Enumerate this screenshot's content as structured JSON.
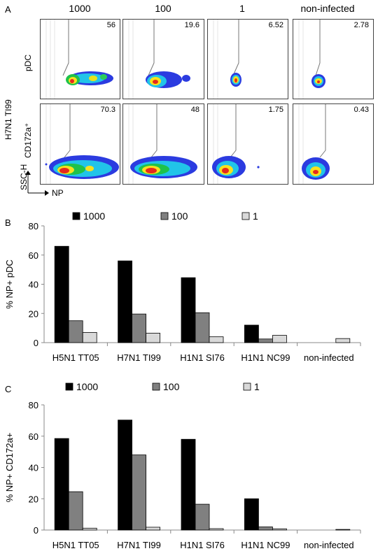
{
  "panel_a": {
    "letter": "A",
    "columns": [
      "1000",
      "100",
      "1",
      "non-infected"
    ],
    "group_label": "H7N1 TI99",
    "rows": [
      {
        "label": "pDC",
        "values": [
          "56",
          "19.6",
          "6.52",
          "2.78"
        ]
      },
      {
        "label": "CD172a⁺",
        "values": [
          "70.3",
          "48",
          "1.75",
          "0.43"
        ]
      }
    ],
    "y_axis": "SSC-H",
    "x_axis": "NP"
  },
  "chart_data": [
    {
      "type": "bar",
      "letter": "B",
      "ylabel": "% NP+ pDC",
      "ylim": [
        0,
        80
      ],
      "yticks": [
        0,
        20,
        40,
        60,
        80
      ],
      "legend_placement": "top",
      "categories": [
        "H5N1 TT05",
        "H7N1 TI99",
        "H1N1 SI76",
        "H1N1 NC99",
        "non-infected"
      ],
      "series": [
        {
          "name": "1000",
          "color": "#000000",
          "values": [
            66,
            56,
            44.5,
            12,
            0
          ]
        },
        {
          "name": "100",
          "color": "#808080",
          "values": [
            15,
            19.6,
            20.5,
            2.5,
            0
          ]
        },
        {
          "name": "1",
          "color": "#d9d9d9",
          "values": [
            7,
            6.5,
            4,
            5,
            2.8
          ]
        }
      ]
    },
    {
      "type": "bar",
      "letter": "C",
      "ylabel": "% NP+ CD172a+",
      "ylim": [
        0,
        80
      ],
      "yticks": [
        0,
        20,
        40,
        60,
        80
      ],
      "legend_placement": "top",
      "categories": [
        "H5N1 TT05",
        "H7N1 TI99",
        "H1N1 SI76",
        "H1N1 NC99",
        "non-infected"
      ],
      "series": [
        {
          "name": "1000",
          "color": "#000000",
          "values": [
            58.5,
            70.3,
            58,
            20,
            0
          ]
        },
        {
          "name": "100",
          "color": "#808080",
          "values": [
            24.5,
            48,
            16.5,
            2,
            0
          ]
        },
        {
          "name": "1",
          "color": "#d9d9d9",
          "values": [
            1.2,
            1.8,
            0.9,
            0.8,
            0.4
          ]
        }
      ]
    }
  ]
}
